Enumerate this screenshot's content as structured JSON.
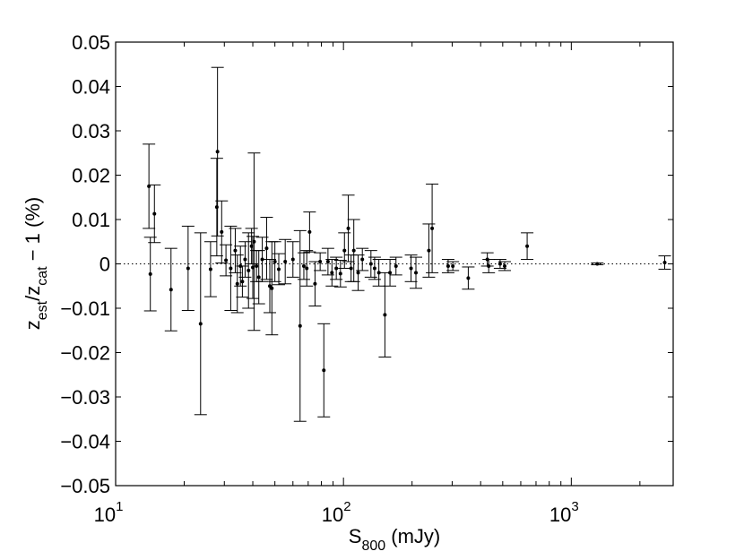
{
  "chart_data": {
    "type": "scatter",
    "title": "",
    "xlabel": {
      "base": "S",
      "sub": "800",
      "rest": " (mJy)"
    },
    "ylabel": {
      "base1": "z",
      "sub1": "est",
      "mid": "/z",
      "sub2": "cat",
      "rest": " − 1 (%)"
    },
    "x_scale": "log",
    "xlim": [
      10,
      2800
    ],
    "ylim": [
      -0.05,
      0.05
    ],
    "x_ticks": [
      {
        "value": 10,
        "base": "10",
        "exp": "1"
      },
      {
        "value": 100,
        "base": "10",
        "exp": "2"
      },
      {
        "value": 1000,
        "base": "10",
        "exp": "3"
      }
    ],
    "y_ticks": [
      "0.05",
      "0.04",
      "0.03",
      "0.02",
      "0.01",
      "0",
      "−0.01",
      "−0.02",
      "−0.03",
      "−0.04",
      "−0.05"
    ],
    "reference_line": {
      "y": 0,
      "style": "dotted"
    },
    "grid": false,
    "legend": false,
    "points": [
      {
        "x": 14.0,
        "y": 0.0175,
        "err": 0.0095
      },
      {
        "x": 14.2,
        "y": -0.0023,
        "err": 0.0083
      },
      {
        "x": 14.8,
        "y": 0.0113,
        "err": 0.0065
      },
      {
        "x": 17.5,
        "y": -0.0058,
        "err": 0.0093
      },
      {
        "x": 20.8,
        "y": -0.001,
        "err": 0.0095
      },
      {
        "x": 23.6,
        "y": -0.0135,
        "err": 0.0205
      },
      {
        "x": 26.1,
        "y": -0.0012,
        "err": 0.0062
      },
      {
        "x": 27.8,
        "y": 0.0128,
        "err": 0.011
      },
      {
        "x": 28.0,
        "y": 0.0253,
        "err": 0.019
      },
      {
        "x": 29.2,
        "y": 0.0072,
        "err": 0.007
      },
      {
        "x": 30.5,
        "y": 0.0008,
        "err": 0.0035
      },
      {
        "x": 32.0,
        "y": -0.001,
        "err": 0.0095
      },
      {
        "x": 33.5,
        "y": 0.003,
        "err": 0.005
      },
      {
        "x": 34.2,
        "y": -0.0045,
        "err": 0.0065
      },
      {
        "x": 35.3,
        "y": -0.0005,
        "err": 0.0045
      },
      {
        "x": 36.0,
        "y": -0.004,
        "err": 0.0035
      },
      {
        "x": 37.0,
        "y": 0.001,
        "err": 0.004
      },
      {
        "x": 38.3,
        "y": -0.0015,
        "err": 0.0085
      },
      {
        "x": 39.5,
        "y": 0.004,
        "err": 0.004
      },
      {
        "x": 40.0,
        "y": -0.0008,
        "err": 0.007
      },
      {
        "x": 40.5,
        "y": 0.005,
        "err": 0.02
      },
      {
        "x": 41.5,
        "y": -0.0005,
        "err": 0.0035
      },
      {
        "x": 42.5,
        "y": -0.003,
        "err": 0.006
      },
      {
        "x": 44.0,
        "y": 0.001,
        "err": 0.005
      },
      {
        "x": 46.0,
        "y": 0.0035,
        "err": 0.007
      },
      {
        "x": 47.5,
        "y": -0.005,
        "err": 0.006
      },
      {
        "x": 48.5,
        "y": -0.0055,
        "err": 0.0105
      },
      {
        "x": 50.0,
        "y": 0.0005,
        "err": 0.0045
      },
      {
        "x": 52.0,
        "y": -0.0012,
        "err": 0.0035
      },
      {
        "x": 55.5,
        "y": 0.0005,
        "err": 0.005
      },
      {
        "x": 60.0,
        "y": 0.001,
        "err": 0.004
      },
      {
        "x": 64.5,
        "y": -0.014,
        "err": 0.0215
      },
      {
        "x": 67.0,
        "y": -0.0005,
        "err": 0.003
      },
      {
        "x": 69.0,
        "y": -0.001,
        "err": 0.004
      },
      {
        "x": 71.0,
        "y": 0.0072,
        "err": 0.0045
      },
      {
        "x": 75.0,
        "y": -0.0045,
        "err": 0.005
      },
      {
        "x": 79.0,
        "y": 0.0005,
        "err": 0.002
      },
      {
        "x": 82.0,
        "y": -0.024,
        "err": 0.0105
      },
      {
        "x": 85.5,
        "y": 0.0005,
        "err": 0.003
      },
      {
        "x": 89.0,
        "y": -0.002,
        "err": 0.003
      },
      {
        "x": 93.0,
        "y": -0.001,
        "err": 0.0025
      },
      {
        "x": 97.0,
        "y": -0.0022,
        "err": 0.003
      },
      {
        "x": 101.0,
        "y": 0.003,
        "err": 0.004
      },
      {
        "x": 105.0,
        "y": 0.008,
        "err": 0.0075
      },
      {
        "x": 108.0,
        "y": -0.001,
        "err": 0.003
      },
      {
        "x": 111.0,
        "y": 0.003,
        "err": 0.007
      },
      {
        "x": 116.0,
        "y": -0.002,
        "err": 0.004
      },
      {
        "x": 121.0,
        "y": 0.001,
        "err": 0.0025
      },
      {
        "x": 132.0,
        "y": 0.0,
        "err": 0.003
      },
      {
        "x": 137.0,
        "y": -0.001,
        "err": 0.0025
      },
      {
        "x": 143.0,
        "y": -0.002,
        "err": 0.003
      },
      {
        "x": 152.0,
        "y": -0.0115,
        "err": 0.0095
      },
      {
        "x": 160.0,
        "y": -0.002,
        "err": 0.003
      },
      {
        "x": 170.0,
        "y": -0.0005,
        "err": 0.002
      },
      {
        "x": 198.0,
        "y": -0.001,
        "err": 0.003
      },
      {
        "x": 208.0,
        "y": -0.002,
        "err": 0.0035
      },
      {
        "x": 237.0,
        "y": 0.003,
        "err": 0.006
      },
      {
        "x": 245.0,
        "y": 0.008,
        "err": 0.01
      },
      {
        "x": 288.0,
        "y": -0.0005,
        "err": 0.0015
      },
      {
        "x": 302.0,
        "y": -0.0005,
        "err": 0.001
      },
      {
        "x": 353.0,
        "y": -0.0032,
        "err": 0.0025
      },
      {
        "x": 428.0,
        "y": 0.001,
        "err": 0.0015
      },
      {
        "x": 434.0,
        "y": -0.0005,
        "err": 0.0015
      },
      {
        "x": 487.0,
        "y": 0.0,
        "err": 0.001
      },
      {
        "x": 510.0,
        "y": -0.0005,
        "err": 0.001
      },
      {
        "x": 640.0,
        "y": 0.004,
        "err": 0.003
      },
      {
        "x": 1300.0,
        "y": 0.0,
        "err": 0.0002
      },
      {
        "x": 2570.0,
        "y": 0.0003,
        "err": 0.0015
      }
    ]
  }
}
